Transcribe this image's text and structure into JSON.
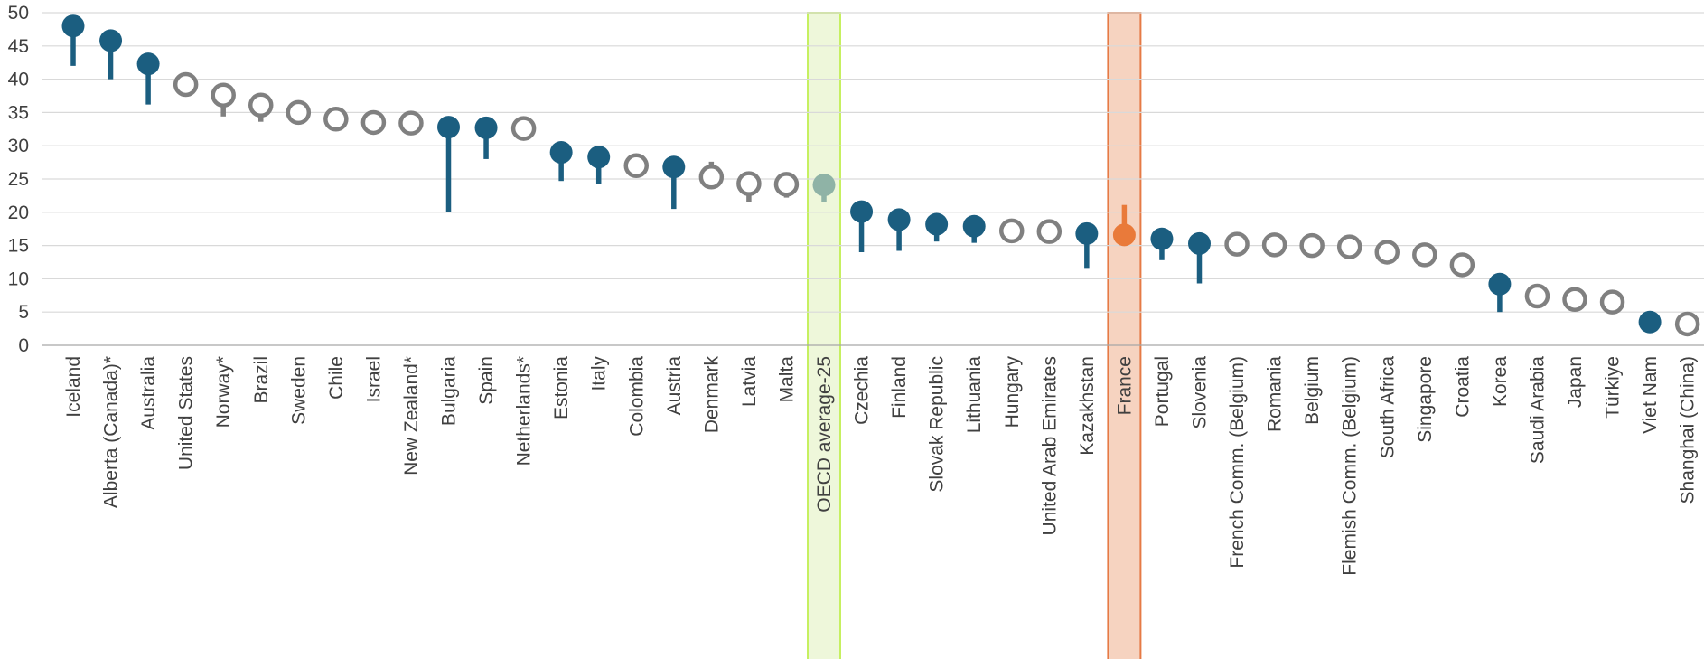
{
  "chart_data": {
    "type": "lollipop",
    "ylim": [
      0,
      50
    ],
    "yticks": [
      0,
      5,
      10,
      15,
      20,
      25,
      30,
      35,
      40,
      45,
      50
    ],
    "grid": true,
    "colors": {
      "significant": "#1b5e80",
      "not_significant": "#808080",
      "oecd_average": "#8fb3a6",
      "france": "#e97a3a",
      "oecd_highlight_fill": "#eef7da",
      "oecd_highlight_stroke": "#c6f060",
      "france_highlight_fill": "#f6d3c0",
      "france_highlight_stroke": "#e67a45"
    },
    "categories": [
      {
        "label": "Iceland",
        "value": 48,
        "stem_end": 42,
        "style": "significant"
      },
      {
        "label": "Alberta (Canada)*",
        "value": 45.8,
        "stem_end": 40,
        "style": "significant"
      },
      {
        "label": "Australia",
        "value": 42.3,
        "stem_end": 36.2,
        "style": "significant"
      },
      {
        "label": "United States",
        "value": 39.2,
        "stem_end": null,
        "style": "not_significant"
      },
      {
        "label": "Norway*",
        "value": 37.6,
        "stem_end": 34.4,
        "style": "not_significant"
      },
      {
        "label": "Brazil",
        "value": 36.1,
        "stem_end": 33.6,
        "style": "not_significant"
      },
      {
        "label": "Sweden",
        "value": 35,
        "stem_end": null,
        "style": "not_significant"
      },
      {
        "label": "Chile",
        "value": 34,
        "stem_end": null,
        "style": "not_significant"
      },
      {
        "label": "Israel",
        "value": 33.5,
        "stem_end": null,
        "style": "not_significant"
      },
      {
        "label": "New Zealand*",
        "value": 33.4,
        "stem_end": null,
        "style": "not_significant"
      },
      {
        "label": "Bulgaria",
        "value": 32.8,
        "stem_end": 20,
        "style": "significant"
      },
      {
        "label": "Spain",
        "value": 32.7,
        "stem_end": 28,
        "style": "significant"
      },
      {
        "label": "Netherlands*",
        "value": 32.6,
        "stem_end": null,
        "style": "not_significant"
      },
      {
        "label": "Estonia",
        "value": 29,
        "stem_end": 24.7,
        "style": "significant"
      },
      {
        "label": "Italy",
        "value": 28.3,
        "stem_end": 24.3,
        "style": "significant"
      },
      {
        "label": "Colombia",
        "value": 27,
        "stem_end": null,
        "style": "not_significant"
      },
      {
        "label": "Austria",
        "value": 26.8,
        "stem_end": 20.5,
        "style": "significant"
      },
      {
        "label": "Denmark",
        "value": 25.3,
        "stem_end": 27.6,
        "style": "not_significant"
      },
      {
        "label": "Latvia",
        "value": 24.3,
        "stem_end": 21.5,
        "style": "not_significant"
      },
      {
        "label": "Malta",
        "value": 24.2,
        "stem_end": 22.2,
        "style": "not_significant"
      },
      {
        "label": "OECD average-25",
        "value": 24.1,
        "stem_end": 21.6,
        "style": "oecd_average"
      },
      {
        "label": "Czechia",
        "value": 20.1,
        "stem_end": 14,
        "style": "significant"
      },
      {
        "label": "Finland",
        "value": 18.9,
        "stem_end": 14.2,
        "style": "significant"
      },
      {
        "label": "Slovak Republic",
        "value": 18.2,
        "stem_end": 15.6,
        "style": "significant"
      },
      {
        "label": "Lithuania",
        "value": 17.9,
        "stem_end": 15.4,
        "style": "significant"
      },
      {
        "label": "Hungary",
        "value": 17.2,
        "stem_end": null,
        "style": "not_significant"
      },
      {
        "label": "United Arab Emirates",
        "value": 17.1,
        "stem_end": null,
        "style": "not_significant"
      },
      {
        "label": "Kazakhstan",
        "value": 16.8,
        "stem_end": 11.5,
        "style": "significant"
      },
      {
        "label": "France",
        "value": 16.6,
        "stem_end": 21.1,
        "style": "france"
      },
      {
        "label": "Portugal",
        "value": 16,
        "stem_end": 12.8,
        "style": "significant"
      },
      {
        "label": "Slovenia",
        "value": 15.3,
        "stem_end": 9.3,
        "style": "significant"
      },
      {
        "label": "French Comm. (Belgium)",
        "value": 15.2,
        "stem_end": null,
        "style": "not_significant"
      },
      {
        "label": "Romania",
        "value": 15.1,
        "stem_end": null,
        "style": "not_significant"
      },
      {
        "label": "Belgium",
        "value": 15,
        "stem_end": null,
        "style": "not_significant"
      },
      {
        "label": "Flemish Comm. (Belgium)",
        "value": 14.8,
        "stem_end": null,
        "style": "not_significant"
      },
      {
        "label": "South Africa",
        "value": 14,
        "stem_end": null,
        "style": "not_significant"
      },
      {
        "label": "Singapore",
        "value": 13.6,
        "stem_end": null,
        "style": "not_significant"
      },
      {
        "label": "Croatia",
        "value": 12.1,
        "stem_end": null,
        "style": "not_significant"
      },
      {
        "label": "Korea",
        "value": 9.2,
        "stem_end": 5,
        "style": "significant"
      },
      {
        "label": "Saudi Arabia",
        "value": 7.4,
        "stem_end": null,
        "style": "not_significant"
      },
      {
        "label": "Japan",
        "value": 6.9,
        "stem_end": null,
        "style": "not_significant"
      },
      {
        "label": "Türkiye",
        "value": 6.5,
        "stem_end": null,
        "style": "not_significant"
      },
      {
        "label": "Viet Nam",
        "value": 3.5,
        "stem_end": null,
        "style": "significant"
      },
      {
        "label": "Shanghai (China)",
        "value": 3.2,
        "stem_end": null,
        "style": "not_significant"
      }
    ],
    "highlighted": [
      "OECD average-25",
      "France"
    ]
  }
}
